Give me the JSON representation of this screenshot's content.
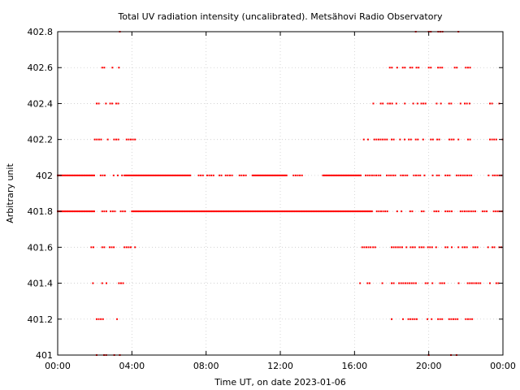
{
  "chart_data": {
    "type": "scatter",
    "title": "Total UV radiation intensity (uncalibrated). Metsähovi Radio Observatory",
    "xlabel": "Time UT, on date 2023-01-06",
    "ylabel": "Arbitrary unit",
    "xlim": [
      0,
      24
    ],
    "ylim": [
      401,
      402.8
    ],
    "x_unit": "hours UT",
    "x_ticks": [
      {
        "value": 0,
        "label": "00:00"
      },
      {
        "value": 4,
        "label": "04:00"
      },
      {
        "value": 8,
        "label": "08:00"
      },
      {
        "value": 12,
        "label": "12:00"
      },
      {
        "value": 16,
        "label": "16:00"
      },
      {
        "value": 20,
        "label": "20:00"
      },
      {
        "value": 24,
        "label": "00:00"
      }
    ],
    "y_ticks": [
      {
        "value": 401,
        "label": "401"
      },
      {
        "value": 401.2,
        "label": "401.2"
      },
      {
        "value": 401.4,
        "label": "401.4"
      },
      {
        "value": 401.6,
        "label": "401.6"
      },
      {
        "value": 401.8,
        "label": "401.8"
      },
      {
        "value": 402,
        "label": "402"
      },
      {
        "value": 402.2,
        "label": "402.2"
      },
      {
        "value": 402.4,
        "label": "402.4"
      },
      {
        "value": 402.6,
        "label": "402.6"
      },
      {
        "value": 402.8,
        "label": "402.8"
      }
    ],
    "grid": true,
    "series": [
      {
        "color": "#ff0000",
        "bands": [
          {
            "y": 402.8,
            "ranges": [
              [
                3.0,
                3.1
              ],
              [
                3.35,
                3.45
              ],
              [
                19.3,
                19.4
              ],
              [
                20.0,
                20.15
              ],
              [
                20.4,
                20.8
              ],
              [
                21.6,
                21.75
              ]
            ]
          },
          {
            "y": 402.6,
            "ranges": [
              [
                2.4,
                2.6
              ],
              [
                2.95,
                3.05
              ],
              [
                3.3,
                3.4
              ],
              [
                17.9,
                18.05
              ],
              [
                18.3,
                18.4
              ],
              [
                18.6,
                18.8
              ],
              [
                19.0,
                19.7
              ],
              [
                20.0,
                20.2
              ],
              [
                20.5,
                20.75
              ],
              [
                21.0,
                21.1
              ],
              [
                21.4,
                21.6
              ],
              [
                22.0,
                22.25
              ]
            ]
          },
          {
            "y": 402.4,
            "ranges": [
              [
                2.1,
                2.3
              ],
              [
                2.6,
                3.0
              ],
              [
                3.15,
                3.35
              ],
              [
                3.65,
                3.7
              ],
              [
                16.9,
                17.1
              ],
              [
                17.3,
                17.6
              ],
              [
                17.8,
                19.4
              ],
              [
                19.6,
                20.0
              ],
              [
                20.2,
                20.9
              ],
              [
                21.1,
                21.3
              ],
              [
                21.6,
                22.1
              ],
              [
                22.2,
                22.3
              ],
              [
                23.3,
                23.5
              ],
              [
                23.8,
                24.0
              ]
            ]
          },
          {
            "y": 402.2,
            "ranges": [
              [
                2.0,
                2.4
              ],
              [
                2.7,
                3.4
              ],
              [
                3.6,
                4.2
              ],
              [
                16.5,
                17.8
              ],
              [
                18.0,
                18.5
              ],
              [
                18.7,
                19.1
              ],
              [
                19.3,
                19.5
              ],
              [
                19.7,
                19.8
              ],
              [
                20.0,
                20.6
              ],
              [
                21.0,
                21.4
              ],
              [
                21.6,
                21.7
              ],
              [
                22.0,
                22.3
              ],
              [
                23.3,
                24.0
              ]
            ]
          },
          {
            "y": 402,
            "ranges": [
              [
                0.0,
                2.0
              ],
              [
                2.2,
                2.6
              ],
              [
                2.9,
                3.5
              ],
              [
                3.6,
                7.2
              ],
              [
                7.6,
                8.4
              ],
              [
                8.6,
                9.6
              ],
              [
                9.8,
                10.2
              ],
              [
                10.5,
                12.4
              ],
              [
                12.6,
                13.2
              ],
              [
                13.6,
                13.7
              ],
              [
                14.3,
                16.4
              ],
              [
                16.6,
                18.2
              ],
              [
                18.5,
                19.0
              ],
              [
                19.2,
                19.8
              ],
              [
                20.1,
                20.6
              ],
              [
                20.9,
                21.2
              ],
              [
                21.5,
                22.4
              ],
              [
                23.0,
                24.0
              ]
            ]
          },
          {
            "y": 401.8,
            "ranges": [
              [
                0.0,
                2.0
              ],
              [
                2.4,
                3.1
              ],
              [
                3.4,
                3.7
              ],
              [
                4.0,
                17.0
              ],
              [
                17.2,
                17.9
              ],
              [
                18.3,
                18.6
              ],
              [
                19.0,
                19.2
              ],
              [
                19.5,
                19.8
              ],
              [
                20.3,
                20.6
              ],
              [
                20.9,
                21.3
              ],
              [
                21.6,
                22.6
              ],
              [
                22.9,
                23.3
              ],
              [
                23.5,
                24.0
              ]
            ]
          },
          {
            "y": 401.6,
            "ranges": [
              [
                1.7,
                2.1
              ],
              [
                2.4,
                2.6
              ],
              [
                2.8,
                3.1
              ],
              [
                3.6,
                4.2
              ],
              [
                16.3,
                16.9
              ],
              [
                17.0,
                17.2
              ],
              [
                18.0,
                18.6
              ],
              [
                18.8,
                19.3
              ],
              [
                19.5,
                20.2
              ],
              [
                20.4,
                20.6
              ],
              [
                20.9,
                21.3
              ],
              [
                21.6,
                22.1
              ],
              [
                22.4,
                22.8
              ],
              [
                23.2,
                23.6
              ],
              [
                23.8,
                24.0
              ]
            ]
          },
          {
            "y": 401.4,
            "ranges": [
              [
                1.9,
                2.0
              ],
              [
                2.4,
                2.7
              ],
              [
                3.0,
                3.1
              ],
              [
                3.3,
                3.7
              ],
              [
                16.3,
                16.4
              ],
              [
                16.7,
                16.9
              ],
              [
                17.5,
                17.6
              ],
              [
                18.0,
                18.2
              ],
              [
                18.4,
                19.4
              ],
              [
                19.6,
                20.0
              ],
              [
                20.2,
                20.3
              ],
              [
                20.5,
                20.9
              ],
              [
                21.5,
                21.8
              ],
              [
                22.1,
                22.9
              ],
              [
                23.3,
                24.0
              ]
            ]
          },
          {
            "y": 401.2,
            "ranges": [
              [
                2.1,
                2.5
              ],
              [
                2.8,
                2.9
              ],
              [
                3.2,
                3.4
              ],
              [
                18.0,
                18.1
              ],
              [
                18.5,
                18.7
              ],
              [
                18.9,
                19.4
              ],
              [
                19.7,
                20.2
              ],
              [
                20.5,
                20.8
              ],
              [
                21.1,
                21.6
              ],
              [
                22.0,
                22.4
              ],
              [
                23.2,
                23.3
              ]
            ]
          },
          {
            "y": 401,
            "ranges": [
              [
                2.1,
                2.2
              ],
              [
                2.5,
                2.7
              ],
              [
                3.05,
                3.1
              ],
              [
                3.35,
                3.45
              ],
              [
                20.0,
                20.2
              ],
              [
                20.6,
                20.7
              ],
              [
                21.2,
                21.3
              ],
              [
                21.5,
                21.6
              ],
              [
                22.0,
                22.1
              ]
            ]
          }
        ]
      }
    ]
  }
}
